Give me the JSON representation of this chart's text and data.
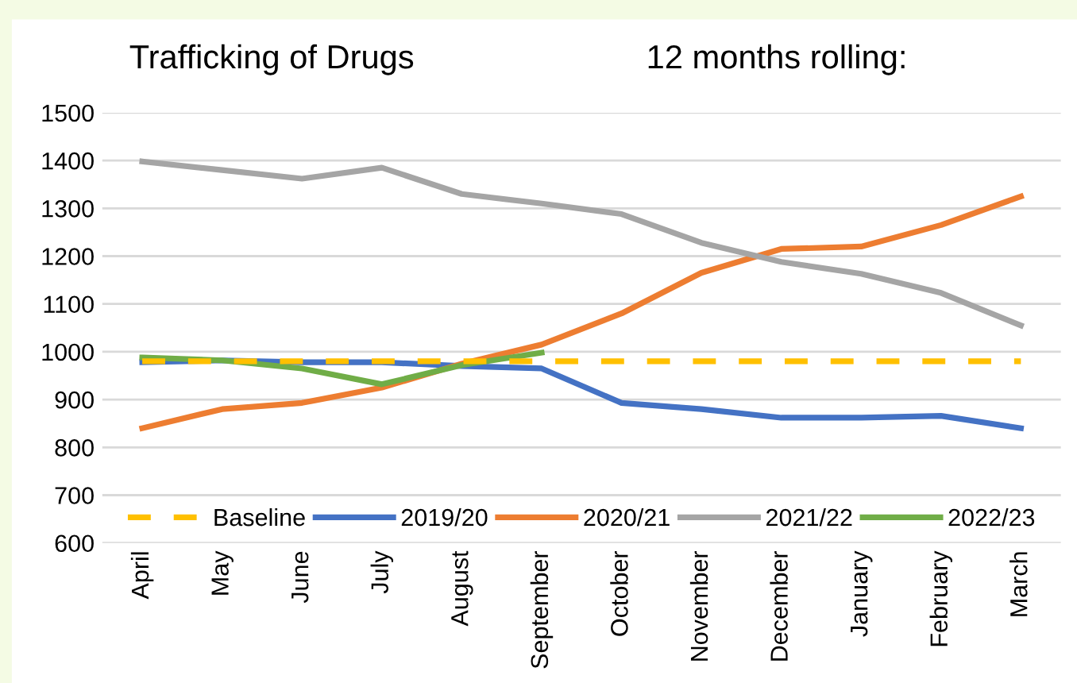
{
  "chart_data": {
    "type": "line",
    "title": "Trafficking of Drugs",
    "subtitle": "12 months rolling:",
    "categories": [
      "April",
      "May",
      "June",
      "July",
      "August",
      "September",
      "October",
      "November",
      "December",
      "January",
      "February",
      "March"
    ],
    "series": [
      {
        "name": "Baseline",
        "color": "#ffc000",
        "line_style": "dashed",
        "values": [
          980,
          980,
          980,
          980,
          980,
          980,
          980,
          980,
          980,
          980,
          980,
          980
        ]
      },
      {
        "name": "2019/20",
        "color": "#4472c4",
        "values": [
          978,
          982,
          978,
          978,
          970,
          965,
          893,
          880,
          862,
          862,
          866,
          840
        ]
      },
      {
        "name": "2020/21",
        "color": "#ed7d31",
        "values": [
          840,
          880,
          893,
          925,
          975,
          1015,
          1080,
          1165,
          1215,
          1220,
          1265,
          1325
        ]
      },
      {
        "name": "2021/22",
        "color": "#a5a5a5",
        "values": [
          1398,
          1380,
          1362,
          1385,
          1330,
          1310,
          1288,
          1228,
          1188,
          1163,
          1123,
          1055
        ]
      },
      {
        "name": "2022/23",
        "color": "#70ad47",
        "values": [
          988,
          982,
          965,
          932,
          972,
          998,
          null,
          null,
          null,
          null,
          null,
          null
        ]
      }
    ],
    "ylim": [
      600,
      1500
    ],
    "yticks": [
      600,
      700,
      800,
      900,
      1000,
      1100,
      1200,
      1300,
      1400,
      1500
    ],
    "grid": "y",
    "legend": "bottom",
    "marker": "none",
    "line_style": "solid"
  }
}
